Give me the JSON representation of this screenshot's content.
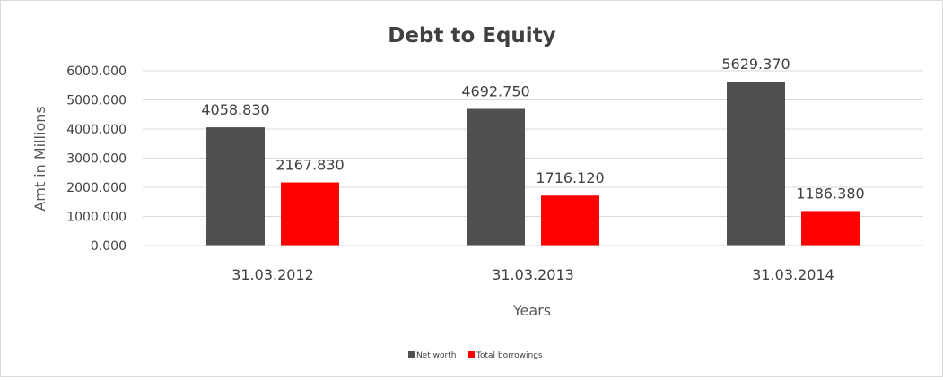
{
  "chart_data": {
    "type": "bar",
    "title": "Debt to Equity",
    "xlabel": "Years",
    "ylabel": "Amt in Millions",
    "categories": [
      "31.03.2012",
      "31.03.2013",
      "31.03.2014"
    ],
    "series": [
      {
        "name": "Net worth",
        "color": "#505050",
        "values": [
          4058.83,
          4692.75,
          5629.37
        ],
        "labels": [
          "4058.830",
          "4692.750",
          "5629.370"
        ]
      },
      {
        "name": "Total borrowings",
        "color": "#ff0000",
        "values": [
          2167.83,
          1716.12,
          1186.38
        ],
        "labels": [
          "2167.830",
          "1716.120",
          "1186.380"
        ]
      }
    ],
    "ylim": [
      0,
      6000
    ],
    "yticks": [
      0,
      1000,
      2000,
      3000,
      4000,
      5000,
      6000
    ],
    "ytick_labels": [
      "0.000",
      "1000.000",
      "2000.000",
      "3000.000",
      "4000.000",
      "5000.000",
      "6000.000"
    ],
    "grid": true,
    "legend_position": "bottom"
  }
}
